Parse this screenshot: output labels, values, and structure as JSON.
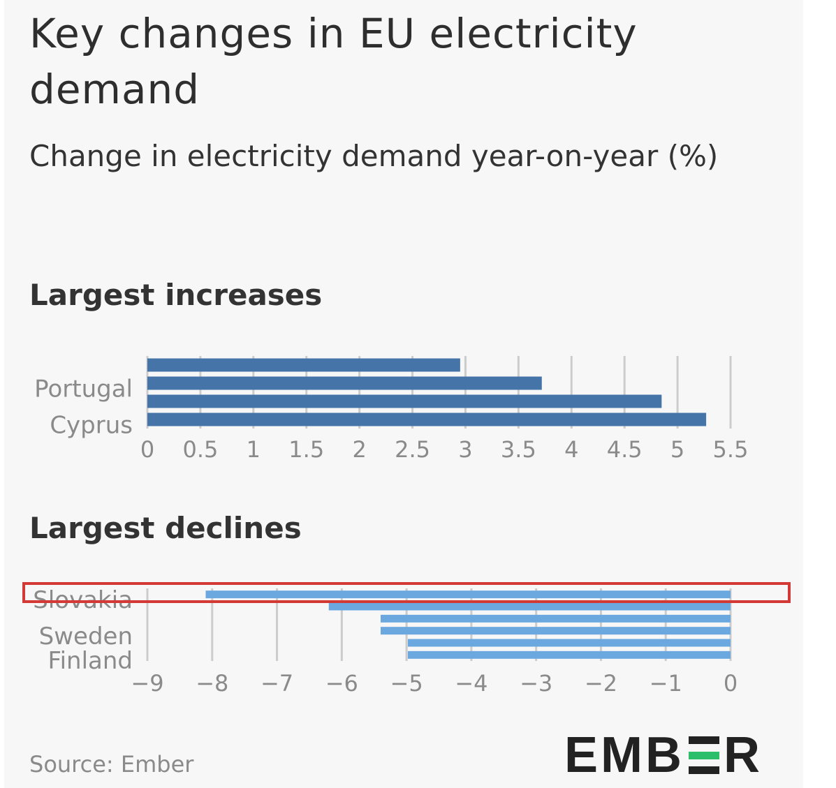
{
  "title": "Key changes in EU electricity demand",
  "subtitle": "Change in electricity demand year-on-year (%)",
  "source": "Source: Ember",
  "logo_text": "EMBER",
  "colors": {
    "increase_bar": "#4574a8",
    "decline_bar": "#6aa8df",
    "grid": "#cccccc",
    "highlight": "#d43a35",
    "logo_accent": "#2dbe6c"
  },
  "chart_data": [
    {
      "type": "bar",
      "orientation": "horizontal",
      "title": "Largest increases",
      "categories": [
        "",
        "Portugal",
        "",
        "Cyprus"
      ],
      "values": [
        2.95,
        3.72,
        4.85,
        5.27
      ],
      "xlim": [
        0,
        5.5
      ],
      "xticks": [
        0,
        0.5,
        1,
        1.5,
        2,
        2.5,
        3,
        3.5,
        4,
        4.5,
        5,
        5.5
      ],
      "xtick_labels": [
        "0",
        "0.5",
        "1",
        "1.5",
        "2",
        "2.5",
        "3",
        "3.5",
        "4",
        "4.5",
        "5",
        "5.5"
      ],
      "grid": true
    },
    {
      "type": "bar",
      "orientation": "horizontal",
      "title": "Largest declines",
      "categories": [
        "Slovakia",
        "",
        "",
        "Sweden",
        "",
        "Finland"
      ],
      "values": [
        -8.1,
        -6.2,
        -5.4,
        -5.4,
        -4.98,
        -4.98
      ],
      "xlim": [
        -9,
        0
      ],
      "xticks": [
        -9,
        -8,
        -7,
        -6,
        -5,
        -4,
        -3,
        -2,
        -1,
        0
      ],
      "xtick_labels": [
        "−9",
        "−8",
        "−7",
        "−6",
        "−5",
        "−4",
        "−3",
        "−2",
        "−1",
        "0"
      ],
      "grid": true,
      "highlighted_category": "Slovakia"
    }
  ]
}
